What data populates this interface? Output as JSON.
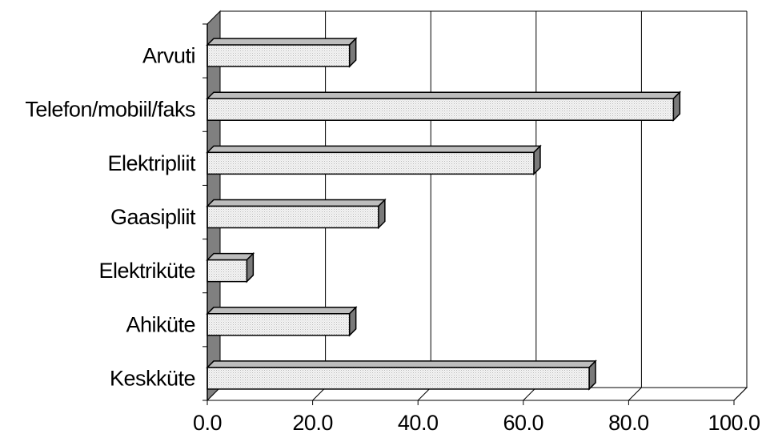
{
  "chart_data": {
    "type": "bar",
    "orientation": "horizontal",
    "style": "3d",
    "categories": [
      "Arvuti",
      "Telefon/mobiil/faks",
      "Elektripliit",
      "Gaasipliit",
      "Elektriküte",
      "Ahiküte",
      "Keskküte"
    ],
    "values": [
      27.0,
      88.5,
      62.0,
      32.5,
      7.5,
      27.0,
      72.5
    ],
    "x_ticks": [
      "0.0",
      "20.0",
      "40.0",
      "60.0",
      "80.0",
      "100.0"
    ],
    "xlim": [
      0,
      100
    ],
    "grid": true,
    "legend": "none",
    "title": "",
    "xlabel": "",
    "ylabel": ""
  }
}
